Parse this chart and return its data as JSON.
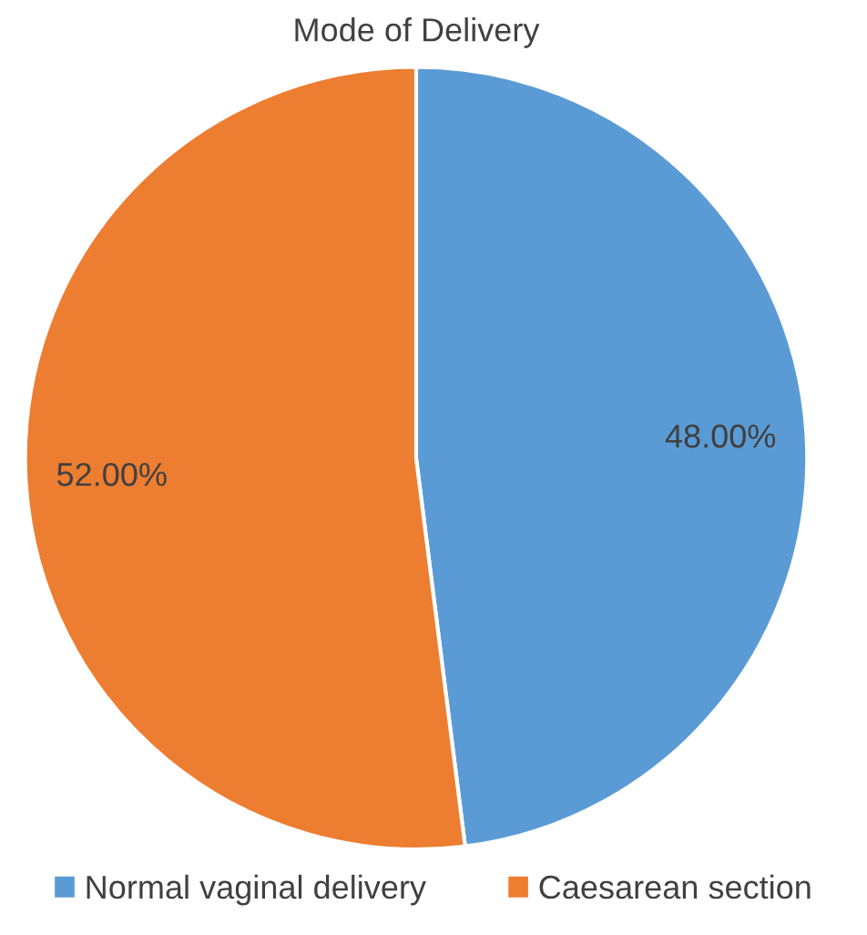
{
  "chart_data": {
    "type": "pie",
    "title": "Mode of Delivery",
    "categories": [
      "Normal vaginal delivery",
      "Caesarean section"
    ],
    "values": [
      48,
      52
    ],
    "value_labels": [
      "48.00%",
      "52.00%"
    ],
    "colors": [
      "#5b9bd5",
      "#ed7d31"
    ],
    "legend": "bottom"
  }
}
